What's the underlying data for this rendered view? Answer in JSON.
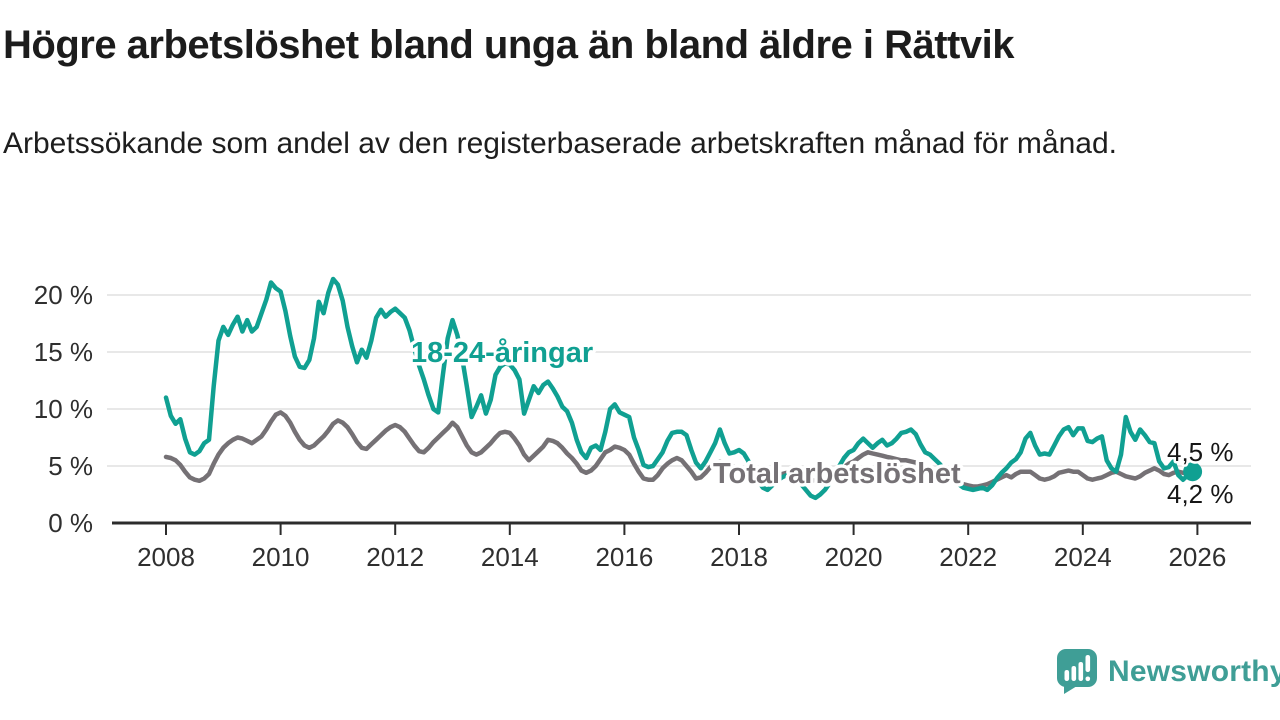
{
  "header": {
    "title": "Högre arbetslöshet bland unga än bland äldre i Rättvik",
    "subtitle": "Arbetssökande som andel av den registerbaserade arbetskraften månad för månad."
  },
  "chart_data": {
    "type": "line",
    "unit": "%",
    "grid": true,
    "legend_position": "inline-labels",
    "x_axis": {
      "ticks": [
        2008,
        2010,
        2012,
        2014,
        2016,
        2018,
        2020,
        2022,
        2024,
        2026
      ],
      "range": [
        2007.5,
        2027.0
      ]
    },
    "y_axis": {
      "ticks": [
        0,
        5,
        10,
        15,
        20
      ],
      "suffix": " %",
      "range": [
        0,
        22
      ]
    },
    "series": [
      {
        "id": "youth",
        "name": "18-24-åringar",
        "color": "#10a092",
        "end_label": "4,5 %",
        "end_value": 4.5,
        "end_dot": true,
        "monthly_values_by_year": {
          "2008": [
            11.0,
            9.4,
            8.7,
            9.1,
            7.4,
            6.2,
            6.0,
            6.3,
            7.0,
            7.3,
            12.0,
            16.0
          ],
          "2009": [
            17.2,
            16.5,
            17.4,
            18.1,
            16.8,
            17.8,
            16.8,
            17.2,
            18.4,
            19.6,
            21.1,
            20.6
          ],
          "2010": [
            20.3,
            18.6,
            16.4,
            14.6,
            13.7,
            13.6,
            14.3,
            16.2,
            19.4,
            18.4,
            20.2,
            21.4
          ],
          "2011": [
            20.9,
            19.5,
            17.2,
            15.5,
            14.1,
            15.2,
            14.5,
            16.0,
            18.0,
            18.7,
            18.1,
            18.5
          ],
          "2012": [
            18.8,
            18.4,
            18.0,
            16.9,
            15.3,
            13.8,
            12.6,
            11.2,
            10.0,
            9.7,
            13.0,
            16.2
          ],
          "2013": [
            17.8,
            16.5,
            14.5,
            12.0,
            9.3,
            10.2,
            11.2,
            9.6,
            10.8,
            13.0,
            13.7,
            14.0
          ],
          "2014": [
            13.9,
            13.4,
            12.6,
            9.6,
            10.8,
            12.0,
            11.4,
            12.1,
            12.4,
            11.8,
            11.1,
            10.2
          ],
          "2015": [
            9.8,
            8.8,
            7.3,
            6.2,
            5.7,
            6.6,
            6.8,
            6.4,
            8.0,
            10.0,
            10.4,
            9.7
          ],
          "2016": [
            9.5,
            9.3,
            7.5,
            6.4,
            5.1,
            4.9,
            5.0,
            5.6,
            6.2,
            7.2,
            7.9,
            8.0
          ],
          "2017": [
            8.0,
            7.7,
            6.4,
            5.3,
            4.8,
            5.4,
            6.2,
            7.0,
            8.2,
            7.0,
            6.1,
            6.2
          ],
          "2018": [
            6.4,
            6.1,
            5.4,
            4.5,
            3.7,
            3.1,
            2.9,
            3.3,
            3.7,
            4.0,
            4.2,
            4.1
          ],
          "2019": [
            3.9,
            3.4,
            2.9,
            2.4,
            2.2,
            2.5,
            2.9,
            3.5,
            4.3,
            5.0,
            5.7,
            6.2
          ],
          "2020": [
            6.4,
            7.0,
            7.4,
            7.0,
            6.6,
            7.0,
            7.3,
            6.8,
            7.0,
            7.4,
            7.9,
            8.0
          ],
          "2021": [
            8.2,
            7.8,
            6.9,
            6.2,
            6.0,
            5.6,
            5.2,
            4.7,
            4.2,
            3.8,
            3.4,
            3.1
          ],
          "2022": [
            3.0,
            2.9,
            3.0,
            3.1,
            2.9,
            3.3,
            3.9,
            4.4,
            4.8,
            5.3,
            5.6,
            6.2
          ],
          "2023": [
            7.4,
            7.9,
            6.8,
            6.0,
            6.1,
            6.0,
            6.8,
            7.6,
            8.2,
            8.4,
            7.7,
            8.3
          ],
          "2024": [
            8.3,
            7.2,
            7.1,
            7.4,
            7.6,
            5.5,
            4.8,
            4.5,
            6.0,
            9.3,
            8.0,
            7.3
          ],
          "2025": [
            8.2,
            7.7,
            7.1,
            7.0,
            5.4,
            4.8,
            4.9,
            5.4,
            4.2,
            3.8,
            4.2,
            4.5
          ]
        }
      },
      {
        "id": "total",
        "name": "Total arbetslöshet",
        "color": "#757175",
        "end_label": "4,2 %",
        "end_value": 4.2,
        "end_dot": false,
        "monthly_values_by_year": {
          "2008": [
            5.8,
            5.7,
            5.5,
            5.1,
            4.5,
            4.0,
            3.8,
            3.7,
            3.9,
            4.3,
            5.2,
            6.0
          ],
          "2009": [
            6.6,
            7.0,
            7.3,
            7.5,
            7.4,
            7.2,
            7.0,
            7.3,
            7.6,
            8.2,
            8.9,
            9.5
          ],
          "2010": [
            9.7,
            9.4,
            8.8,
            8.0,
            7.3,
            6.8,
            6.6,
            6.8,
            7.2,
            7.6,
            8.1,
            8.7
          ],
          "2011": [
            9.0,
            8.8,
            8.4,
            7.8,
            7.1,
            6.6,
            6.5,
            6.9,
            7.3,
            7.7,
            8.1,
            8.4
          ],
          "2012": [
            8.6,
            8.4,
            8.0,
            7.4,
            6.8,
            6.3,
            6.2,
            6.6,
            7.1,
            7.5,
            7.9,
            8.3
          ],
          "2013": [
            8.8,
            8.4,
            7.6,
            6.8,
            6.2,
            6.0,
            6.2,
            6.6,
            7.0,
            7.5,
            7.9,
            8.0
          ],
          "2014": [
            7.9,
            7.4,
            6.8,
            6.0,
            5.5,
            5.9,
            6.3,
            6.7,
            7.3,
            7.2,
            7.0,
            6.6
          ],
          "2015": [
            6.1,
            5.7,
            5.2,
            4.6,
            4.4,
            4.6,
            5.0,
            5.6,
            6.2,
            6.4,
            6.7,
            6.6
          ],
          "2016": [
            6.4,
            6.0,
            5.2,
            4.5,
            3.9,
            3.8,
            3.8,
            4.2,
            4.8,
            5.2,
            5.5,
            5.7
          ],
          "2017": [
            5.5,
            5.0,
            4.5,
            3.9,
            4.0,
            4.4,
            4.9,
            5.3,
            5.4,
            5.3,
            5.2,
            4.9
          ],
          "2018": [
            4.8,
            4.5,
            4.1,
            3.8,
            3.6,
            3.5,
            3.7,
            3.9,
            4.1,
            4.3,
            4.4,
            4.5
          ],
          "2019": [
            4.4,
            4.2,
            4.0,
            3.8,
            3.7,
            3.9,
            4.1,
            4.3,
            4.5,
            4.7,
            4.9,
            5.2
          ],
          "2020": [
            5.4,
            5.7,
            6.0,
            6.2,
            6.1,
            6.0,
            5.9,
            5.8,
            5.7,
            5.6,
            5.5,
            5.5
          ],
          "2021": [
            5.4,
            5.3,
            5.1,
            4.9,
            4.7,
            4.5,
            4.3,
            4.1,
            3.9,
            3.7,
            3.5,
            3.4
          ],
          "2022": [
            3.3,
            3.2,
            3.2,
            3.3,
            3.4,
            3.6,
            3.8,
            4.0,
            4.2,
            4.0,
            4.3,
            4.5
          ],
          "2023": [
            4.5,
            4.5,
            4.2,
            3.9,
            3.8,
            3.9,
            4.1,
            4.4,
            4.5,
            4.6,
            4.5,
            4.5
          ],
          "2024": [
            4.2,
            3.9,
            3.8,
            3.9,
            4.0,
            4.2,
            4.4,
            4.5,
            4.3,
            4.1,
            4.0,
            3.9
          ],
          "2025": [
            4.1,
            4.4,
            4.6,
            4.8,
            4.6,
            4.3,
            4.2,
            4.4,
            4.5,
            4.4,
            4.3,
            4.2
          ]
        }
      }
    ]
  },
  "footer": {
    "brand": "Newsworthy",
    "brand_color": "#3f9e96"
  }
}
